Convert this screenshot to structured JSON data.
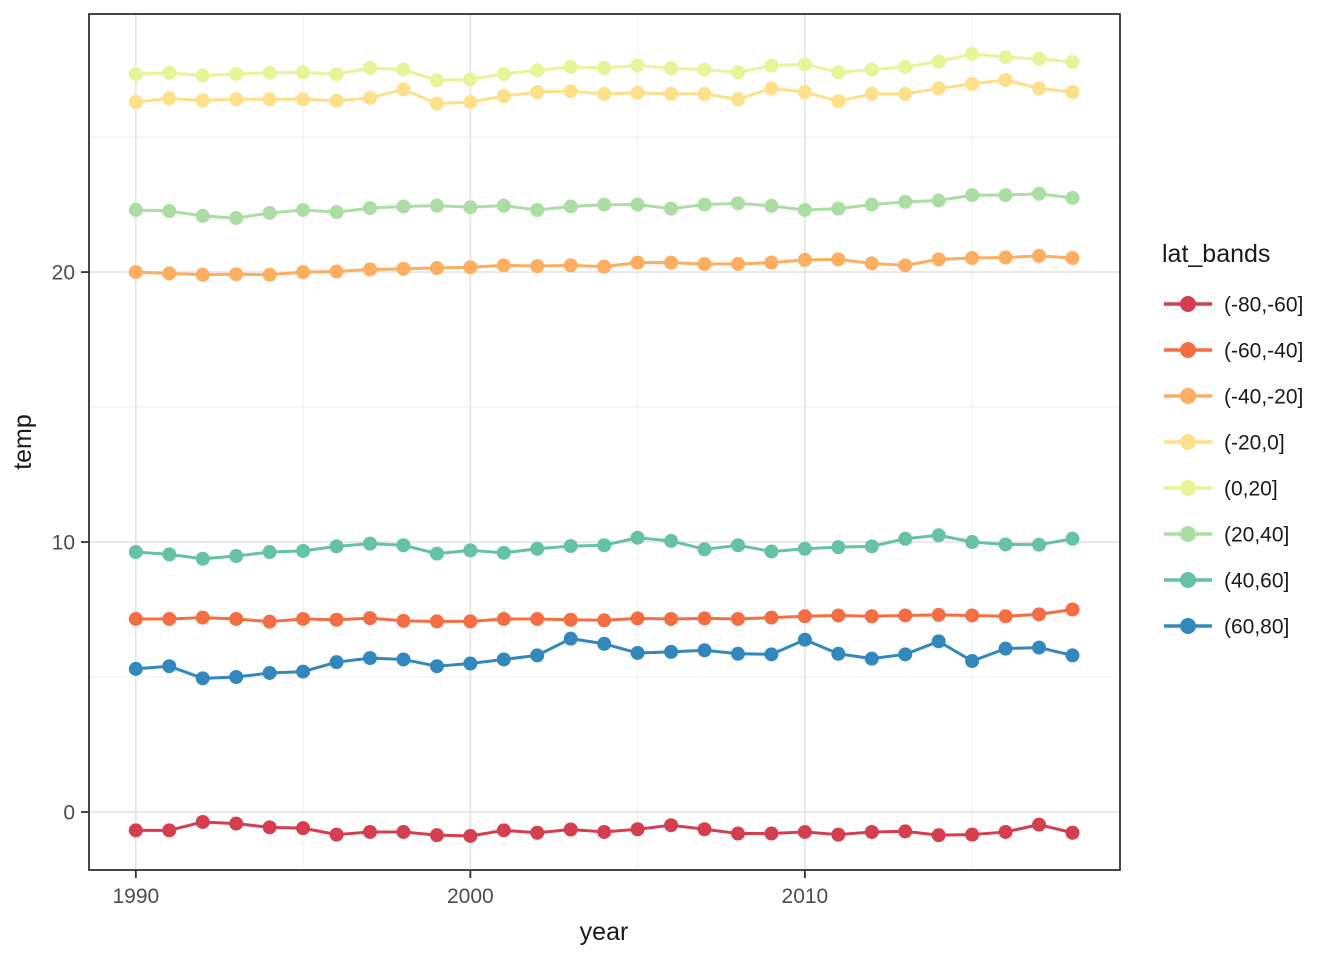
{
  "chart_data": {
    "type": "line",
    "title": "",
    "xlabel": "year",
    "ylabel": "temp",
    "x_ticks": [
      1990,
      2000,
      2010
    ],
    "x_minor_ticks": [
      1995,
      2005,
      2015
    ],
    "y_ticks": [
      0,
      10,
      20
    ],
    "y_minor_ticks": [
      5,
      15,
      25
    ],
    "xlim": [
      1988.6,
      2019.42
    ],
    "ylim": [
      -2.15,
      29.56
    ],
    "grid": "on",
    "legend": {
      "title": "lat_bands",
      "position": "right"
    },
    "x": [
      1990,
      1991,
      1992,
      1993,
      1994,
      1995,
      1996,
      1997,
      1998,
      1999,
      2000,
      2001,
      2002,
      2003,
      2004,
      2005,
      2006,
      2007,
      2008,
      2009,
      2010,
      2011,
      2012,
      2013,
      2014,
      2015,
      2016,
      2017,
      2018
    ],
    "series": [
      {
        "name": "(-80,-60]",
        "color": "#d53e4f",
        "values": [
          -0.68,
          -0.68,
          -0.37,
          -0.43,
          -0.57,
          -0.6,
          -0.84,
          -0.74,
          -0.74,
          -0.86,
          -0.89,
          -0.68,
          -0.77,
          -0.65,
          -0.74,
          -0.64,
          -0.49,
          -0.64,
          -0.8,
          -0.8,
          -0.74,
          -0.84,
          -0.74,
          -0.72,
          -0.86,
          -0.84,
          -0.74,
          -0.47,
          -0.77
        ]
      },
      {
        "name": "(-60,-40]",
        "color": "#f46d43",
        "values": [
          7.15,
          7.15,
          7.2,
          7.15,
          7.05,
          7.15,
          7.12,
          7.18,
          7.08,
          7.06,
          7.06,
          7.15,
          7.15,
          7.12,
          7.1,
          7.17,
          7.15,
          7.17,
          7.15,
          7.2,
          7.25,
          7.28,
          7.25,
          7.28,
          7.3,
          7.28,
          7.25,
          7.32,
          7.5
        ]
      },
      {
        "name": "(-40,-20]",
        "color": "#fdae61",
        "values": [
          20.0,
          19.95,
          19.9,
          19.92,
          19.9,
          20.0,
          20.02,
          20.1,
          20.12,
          20.15,
          20.18,
          20.25,
          20.22,
          20.25,
          20.2,
          20.35,
          20.35,
          20.3,
          20.3,
          20.35,
          20.45,
          20.47,
          20.32,
          20.25,
          20.47,
          20.52,
          20.54,
          20.6,
          20.52
        ]
      },
      {
        "name": "(-20,0]",
        "color": "#fee08b",
        "values": [
          26.3,
          26.43,
          26.36,
          26.4,
          26.4,
          26.4,
          26.34,
          26.45,
          26.77,
          26.24,
          26.3,
          26.52,
          26.67,
          26.7,
          26.6,
          26.64,
          26.6,
          26.6,
          26.4,
          26.8,
          26.67,
          26.33,
          26.6,
          26.6,
          26.8,
          26.97,
          27.12,
          26.8,
          26.67
        ]
      },
      {
        "name": "(0,20]",
        "color": "#e6f598",
        "values": [
          27.34,
          27.38,
          27.28,
          27.34,
          27.38,
          27.4,
          27.33,
          27.56,
          27.5,
          27.1,
          27.14,
          27.34,
          27.47,
          27.6,
          27.56,
          27.65,
          27.55,
          27.5,
          27.4,
          27.65,
          27.7,
          27.4,
          27.5,
          27.6,
          27.8,
          28.08,
          27.96,
          27.9,
          27.78
        ]
      },
      {
        "name": "(20,40]",
        "color": "#abdda4",
        "values": [
          22.3,
          22.26,
          22.08,
          22.0,
          22.19,
          22.3,
          22.22,
          22.37,
          22.43,
          22.46,
          22.4,
          22.46,
          22.3,
          22.43,
          22.5,
          22.5,
          22.35,
          22.5,
          22.55,
          22.45,
          22.3,
          22.35,
          22.5,
          22.6,
          22.65,
          22.85,
          22.85,
          22.9,
          22.75
        ]
      },
      {
        "name": "(40,60]",
        "color": "#66c2a5",
        "values": [
          9.63,
          9.54,
          9.38,
          9.48,
          9.63,
          9.67,
          9.84,
          9.94,
          9.88,
          9.57,
          9.69,
          9.6,
          9.75,
          9.85,
          9.88,
          10.16,
          10.04,
          9.73,
          9.88,
          9.65,
          9.75,
          9.81,
          9.84,
          10.12,
          10.25,
          10.0,
          9.91,
          9.9,
          10.12
        ]
      },
      {
        "name": "(60,80]",
        "color": "#3288bd",
        "values": [
          5.3,
          5.4,
          4.95,
          5.0,
          5.15,
          5.2,
          5.55,
          5.7,
          5.65,
          5.4,
          5.5,
          5.65,
          5.8,
          6.42,
          6.23,
          5.89,
          5.93,
          5.99,
          5.86,
          5.84,
          6.38,
          5.86,
          5.68,
          5.84,
          6.32,
          5.59,
          6.05,
          6.09,
          5.8
        ]
      }
    ]
  },
  "colors": {
    "background": "#ffffff",
    "panel_background": "#ffffff",
    "panel_border": "#333333",
    "grid_major": "#e4e4e4",
    "grid_minor": "#efefef",
    "tick_mark": "#333333",
    "tick_label": "#4d4d4d",
    "axis_title": "#1a1a1a",
    "legend_text": "#1a1a1a"
  }
}
